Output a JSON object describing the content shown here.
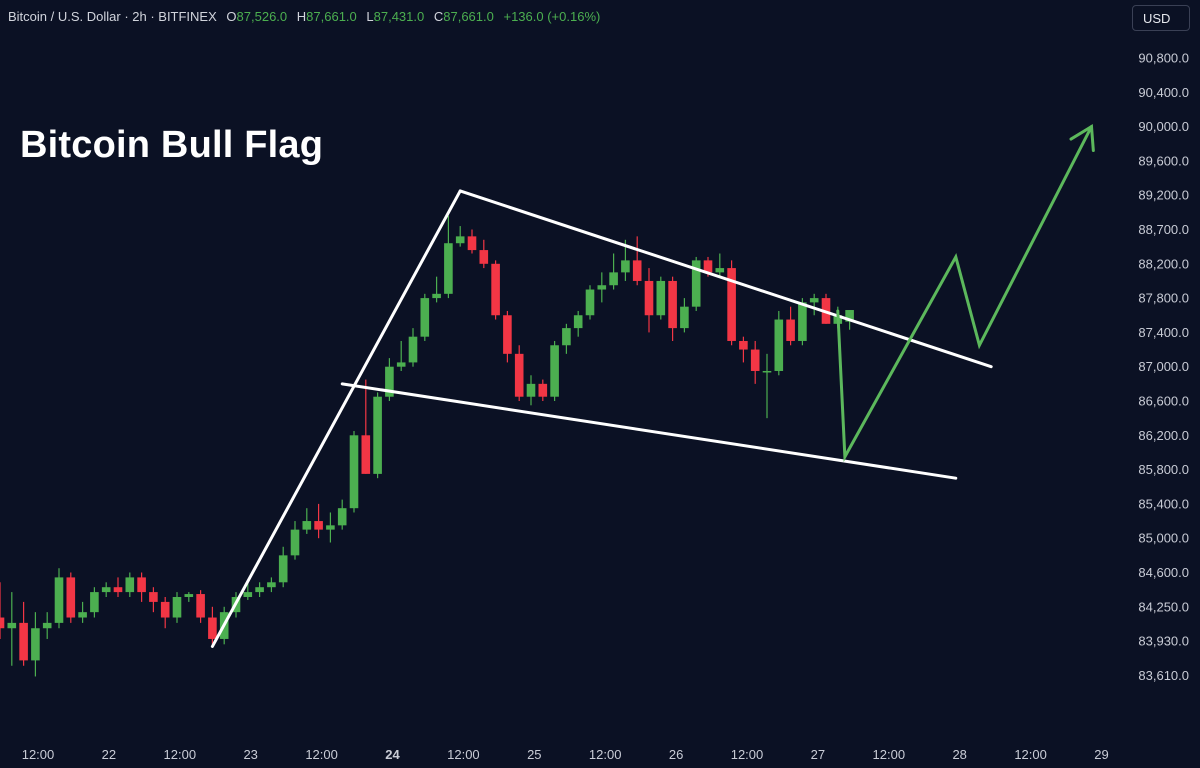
{
  "header": {
    "symbol": "Bitcoin / U.S. Dollar · 2h · BITFINEX",
    "open_label": "O",
    "open_value": "87,526.0",
    "high_label": "H",
    "high_value": "87,661.0",
    "low_label": "L",
    "low_value": "87,431.0",
    "close_label": "C",
    "close_value": "87,661.0",
    "change": "+136.0 (+0.16%)"
  },
  "currency": "USD",
  "colors": {
    "background": "#0b1124",
    "up": "#4caf50",
    "down": "#f23645",
    "pattern_lines": "#ffffff",
    "projection": "#5cb85c"
  },
  "chart_data": {
    "type": "candlestick",
    "title": "Bitcoin Bull Flag",
    "y_ticks": [
      "90,800.0",
      "90,400.0",
      "90,000.0",
      "89,600.0",
      "89,200.0",
      "88,700.0",
      "88,200.0",
      "87,800.0",
      "87,400.0",
      "87,000.0",
      "86,600.0",
      "86,200.0",
      "85,800.0",
      "85,400.0",
      "85,000.0",
      "84,600.0",
      "84,250.0",
      "83,930.0",
      "83,610.0"
    ],
    "x_ticks": [
      {
        "label": "12:00",
        "bold": false
      },
      {
        "label": "22",
        "bold": false
      },
      {
        "label": "12:00",
        "bold": false
      },
      {
        "label": "23",
        "bold": false
      },
      {
        "label": "12:00",
        "bold": false
      },
      {
        "label": "24",
        "bold": true
      },
      {
        "label": "12:00",
        "bold": false
      },
      {
        "label": "25",
        "bold": false
      },
      {
        "label": "12:00",
        "bold": false
      },
      {
        "label": "26",
        "bold": false
      },
      {
        "label": "12:00",
        "bold": false
      },
      {
        "label": "27",
        "bold": false
      },
      {
        "label": "12:00",
        "bold": false
      },
      {
        "label": "28",
        "bold": false
      },
      {
        "label": "12:00",
        "bold": false
      },
      {
        "label": "29",
        "bold": false
      }
    ],
    "candles": [
      {
        "o": 84150,
        "h": 84500,
        "l": 83950,
        "c": 84050
      },
      {
        "o": 84050,
        "h": 84400,
        "l": 83700,
        "c": 84100
      },
      {
        "o": 84100,
        "h": 84300,
        "l": 83700,
        "c": 83750
      },
      {
        "o": 83750,
        "h": 84200,
        "l": 83600,
        "c": 84050
      },
      {
        "o": 84050,
        "h": 84200,
        "l": 83950,
        "c": 84100
      },
      {
        "o": 84100,
        "h": 84650,
        "l": 84050,
        "c": 84550
      },
      {
        "o": 84550,
        "h": 84600,
        "l": 84100,
        "c": 84150
      },
      {
        "o": 84150,
        "h": 84300,
        "l": 84100,
        "c": 84200
      },
      {
        "o": 84200,
        "h": 84450,
        "l": 84150,
        "c": 84400
      },
      {
        "o": 84400,
        "h": 84500,
        "l": 84350,
        "c": 84450
      },
      {
        "o": 84450,
        "h": 84550,
        "l": 84350,
        "c": 84400
      },
      {
        "o": 84400,
        "h": 84600,
        "l": 84350,
        "c": 84550
      },
      {
        "o": 84550,
        "h": 84600,
        "l": 84300,
        "c": 84400
      },
      {
        "o": 84400,
        "h": 84450,
        "l": 84200,
        "c": 84300
      },
      {
        "o": 84300,
        "h": 84350,
        "l": 84050,
        "c": 84150
      },
      {
        "o": 84150,
        "h": 84400,
        "l": 84100,
        "c": 84350
      },
      {
        "o": 84350,
        "h": 84400,
        "l": 84300,
        "c": 84380
      },
      {
        "o": 84380,
        "h": 84420,
        "l": 84100,
        "c": 84150
      },
      {
        "o": 84150,
        "h": 84250,
        "l": 83900,
        "c": 83950
      },
      {
        "o": 83950,
        "h": 84250,
        "l": 83900,
        "c": 84200
      },
      {
        "o": 84200,
        "h": 84400,
        "l": 84150,
        "c": 84350
      },
      {
        "o": 84350,
        "h": 84500,
        "l": 84320,
        "c": 84400
      },
      {
        "o": 84400,
        "h": 84500,
        "l": 84350,
        "c": 84450
      },
      {
        "o": 84450,
        "h": 84550,
        "l": 84400,
        "c": 84500
      },
      {
        "o": 84500,
        "h": 84900,
        "l": 84450,
        "c": 84800
      },
      {
        "o": 84800,
        "h": 85200,
        "l": 84750,
        "c": 85100
      },
      {
        "o": 85100,
        "h": 85350,
        "l": 85050,
        "c": 85200
      },
      {
        "o": 85200,
        "h": 85400,
        "l": 85000,
        "c": 85100
      },
      {
        "o": 85100,
        "h": 85300,
        "l": 84950,
        "c": 85150
      },
      {
        "o": 85150,
        "h": 85450,
        "l": 85100,
        "c": 85350
      },
      {
        "o": 85350,
        "h": 86250,
        "l": 85300,
        "c": 86200
      },
      {
        "o": 86200,
        "h": 86850,
        "l": 85750,
        "c": 85750
      },
      {
        "o": 85750,
        "h": 86700,
        "l": 85700,
        "c": 86650
      },
      {
        "o": 86650,
        "h": 87100,
        "l": 86600,
        "c": 87000
      },
      {
        "o": 87000,
        "h": 87300,
        "l": 86950,
        "c": 87050
      },
      {
        "o": 87050,
        "h": 87450,
        "l": 87000,
        "c": 87350
      },
      {
        "o": 87350,
        "h": 87850,
        "l": 87300,
        "c": 87800
      },
      {
        "o": 87800,
        "h": 88050,
        "l": 87750,
        "c": 87850
      },
      {
        "o": 87850,
        "h": 88900,
        "l": 87800,
        "c": 88500
      },
      {
        "o": 88500,
        "h": 88750,
        "l": 88450,
        "c": 88600
      },
      {
        "o": 88600,
        "h": 88700,
        "l": 88350,
        "c": 88400
      },
      {
        "o": 88400,
        "h": 88550,
        "l": 88150,
        "c": 88200
      },
      {
        "o": 88200,
        "h": 88250,
        "l": 87550,
        "c": 87600
      },
      {
        "o": 87600,
        "h": 87650,
        "l": 87050,
        "c": 87150
      },
      {
        "o": 87150,
        "h": 87250,
        "l": 86600,
        "c": 86650
      },
      {
        "o": 86650,
        "h": 86900,
        "l": 86550,
        "c": 86800
      },
      {
        "o": 86800,
        "h": 86850,
        "l": 86600,
        "c": 86650
      },
      {
        "o": 86650,
        "h": 87300,
        "l": 86600,
        "c": 87250
      },
      {
        "o": 87250,
        "h": 87500,
        "l": 87150,
        "c": 87450
      },
      {
        "o": 87450,
        "h": 87650,
        "l": 87350,
        "c": 87600
      },
      {
        "o": 87600,
        "h": 87950,
        "l": 87550,
        "c": 87900
      },
      {
        "o": 87900,
        "h": 88100,
        "l": 87750,
        "c": 87950
      },
      {
        "o": 87950,
        "h": 88350,
        "l": 87900,
        "c": 88100
      },
      {
        "o": 88100,
        "h": 88550,
        "l": 88000,
        "c": 88250
      },
      {
        "o": 88250,
        "h": 88600,
        "l": 87950,
        "c": 88000
      },
      {
        "o": 88000,
        "h": 88150,
        "l": 87400,
        "c": 87600
      },
      {
        "o": 87600,
        "h": 88050,
        "l": 87550,
        "c": 88000
      },
      {
        "o": 88000,
        "h": 88050,
        "l": 87300,
        "c": 87450
      },
      {
        "o": 87450,
        "h": 87800,
        "l": 87400,
        "c": 87700
      },
      {
        "o": 87700,
        "h": 88300,
        "l": 87650,
        "c": 88250
      },
      {
        "o": 88250,
        "h": 88300,
        "l": 88050,
        "c": 88100
      },
      {
        "o": 88100,
        "h": 88350,
        "l": 88050,
        "c": 88150
      },
      {
        "o": 88150,
        "h": 88250,
        "l": 87250,
        "c": 87300
      },
      {
        "o": 87300,
        "h": 87350,
        "l": 87050,
        "c": 87200
      },
      {
        "o": 87200,
        "h": 87300,
        "l": 86800,
        "c": 86950
      },
      {
        "o": 86950,
        "h": 87150,
        "l": 86400,
        "c": 86950
      },
      {
        "o": 86950,
        "h": 87650,
        "l": 86900,
        "c": 87550
      },
      {
        "o": 87550,
        "h": 87700,
        "l": 87250,
        "c": 87300
      },
      {
        "o": 87300,
        "h": 87800,
        "l": 87250,
        "c": 87750
      },
      {
        "o": 87750,
        "h": 87850,
        "l": 87600,
        "c": 87800
      },
      {
        "o": 87800,
        "h": 87850,
        "l": 87500,
        "c": 87500
      },
      {
        "o": 87500,
        "h": 87700,
        "l": 87450,
        "c": 87600
      },
      {
        "o": 87526,
        "h": 87661,
        "l": 87431,
        "c": 87661
      }
    ],
    "flag_pole": [
      {
        "index": 18,
        "price": 83880
      },
      {
        "index": 39,
        "price": 89250
      }
    ],
    "flag_upper": [
      {
        "index": 39,
        "price": 89250
      },
      {
        "index": 84,
        "price": 87000
      }
    ],
    "flag_lower": [
      {
        "index": 29,
        "price": 86800
      },
      {
        "index": 81,
        "price": 85700
      }
    ],
    "projection": [
      {
        "index": 71,
        "price": 87650
      },
      {
        "index": 71.6,
        "price": 85950
      },
      {
        "index": 81,
        "price": 88300
      },
      {
        "index": 83,
        "price": 87250
      },
      {
        "index": 92.5,
        "price": 90000
      }
    ]
  }
}
